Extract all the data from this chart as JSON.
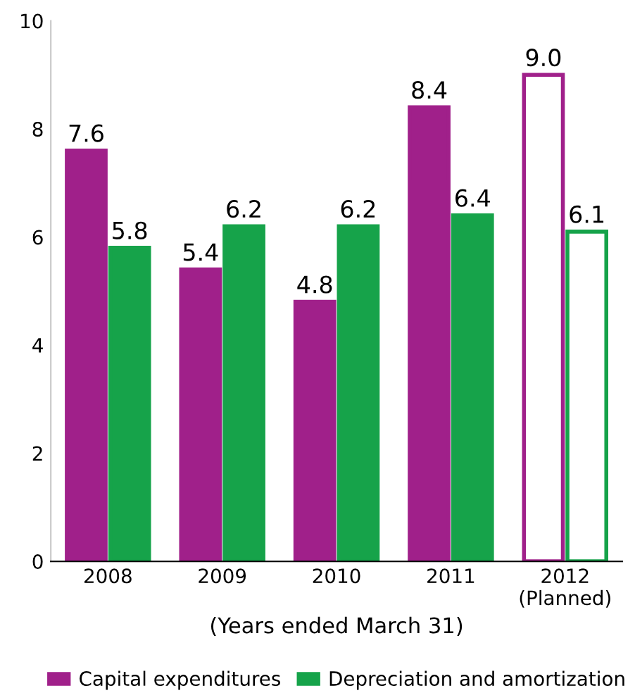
{
  "chart_data": {
    "type": "bar",
    "categories": [
      "2008",
      "2009",
      "2010",
      "2011",
      "2012\n(Planned)"
    ],
    "xlabel": "(Years ended March 31)",
    "series": [
      {
        "name": "Capital expenditures",
        "color": "#a0208a",
        "colors": [
          "#a0208a",
          "#a0208a",
          "#a0208a",
          "#a0208a",
          "#ffffff"
        ],
        "values": [
          7.6,
          5.4,
          4.8,
          8.4,
          9.0
        ],
        "value_labels": [
          "7.6",
          "5.4",
          "4.8",
          "8.4",
          "9.0"
        ]
      },
      {
        "name": "Depreciation and amortization",
        "color": "#16a34a",
        "colors": [
          "#16a34a",
          "#16a34a",
          "#16a34a",
          "#16a34a",
          "#ffffff"
        ],
        "values": [
          5.8,
          6.2,
          6.2,
          6.4,
          6.1
        ],
        "value_labels": [
          "5.8",
          "6.2",
          "6.2",
          "6.4",
          "6.1"
        ]
      }
    ],
    "ylim": [
      0,
      10
    ],
    "yticks": [
      0,
      2,
      4,
      6,
      8,
      10
    ],
    "grid": false,
    "legend": "bottom"
  }
}
